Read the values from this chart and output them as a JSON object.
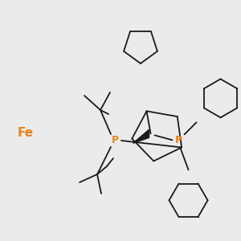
{
  "background_color": "#ebebeb",
  "fe_color": "#E8821A",
  "p_color": "#E8821A",
  "bond_color": "#1a1a1a",
  "fe_label": "Fe",
  "p_label": "P",
  "lw": 1.3
}
